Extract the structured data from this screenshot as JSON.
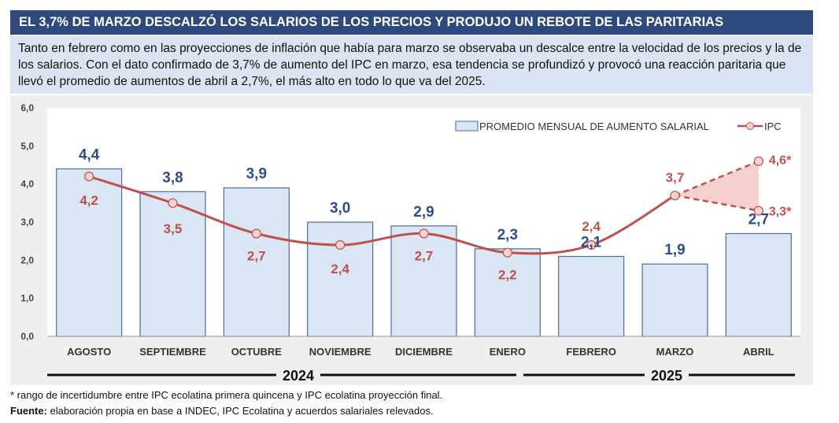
{
  "title": "EL 3,7% DE MARZO DESCALZÓ LOS SALARIOS DE LOS PRECIOS Y PRODUJO UN REBOTE DE LAS PARITARIAS",
  "intro": "Tanto en febrero como en las proyecciones de inflación que había para marzo se observaba un descalce entre la velocidad de los precios y la de los salarios. Con el dato confirmado de 3,7% de aumento del IPC en marzo, esa tendencia se profundizó y provocó una reacción paritaria que llevó el promedio de aumentos de abril a 2,7%, el más alto en todo lo que va del 2025.",
  "colors": {
    "bar_fill": "#dbe6f4",
    "bar_stroke": "#4a6ea0",
    "bar_label": "#2e4f86",
    "ipc_line": "#c0504d",
    "ipc_label": "#c0504d",
    "range_fill": "#f2c9c6"
  },
  "chart_data": {
    "type": "bar",
    "categories": [
      "AGOSTO",
      "SEPTIEMBRE",
      "OCTUBRE",
      "NOVIEMBRE",
      "DICIEMBRE",
      "ENERO",
      "FEBRERO",
      "MARZO",
      "ABRIL"
    ],
    "ylim": [
      0,
      6
    ],
    "yticks": [
      "0,0",
      "1,0",
      "2,0",
      "3,0",
      "4,0",
      "5,0",
      "6,0"
    ],
    "grid": false,
    "legend_position": "top-right",
    "series": [
      {
        "name": "PROMEDIO MENSUAL DE AUMENTO SALARIAL",
        "type": "bar",
        "values": [
          4.4,
          3.8,
          3.9,
          3.0,
          2.9,
          2.3,
          2.1,
          1.9,
          2.7
        ],
        "labels": [
          "4,4",
          "3,8",
          "3,9",
          "3,0",
          "2,9",
          "2,3",
          "2,1",
          "1,9",
          "2,7"
        ]
      },
      {
        "name": "IPC",
        "type": "line",
        "values": [
          4.2,
          3.5,
          2.7,
          2.4,
          2.7,
          2.2,
          2.4,
          3.7,
          null
        ],
        "labels": [
          "4,2",
          "3,5",
          "2,7",
          "2,4",
          "2,7",
          "2,2",
          "2,4",
          "3,7",
          ""
        ],
        "projection_range": {
          "category": "ABRIL",
          "high": 4.6,
          "low": 3.3,
          "high_label": "4,6*",
          "low_label": "3,3*"
        }
      }
    ],
    "year_groups": [
      {
        "label": "2024",
        "from": 0,
        "to": 4
      },
      {
        "label": "2025",
        "from": 5,
        "to": 8
      }
    ]
  },
  "footnote": "* rango de incertidumbre entre IPC ecolatina primera quincena y IPC ecolatina proyección final.",
  "source_label": "Fuente:",
  "source_text": " elaboración propia en base a INDEC, IPC Ecolatina y acuerdos salariales relevados."
}
